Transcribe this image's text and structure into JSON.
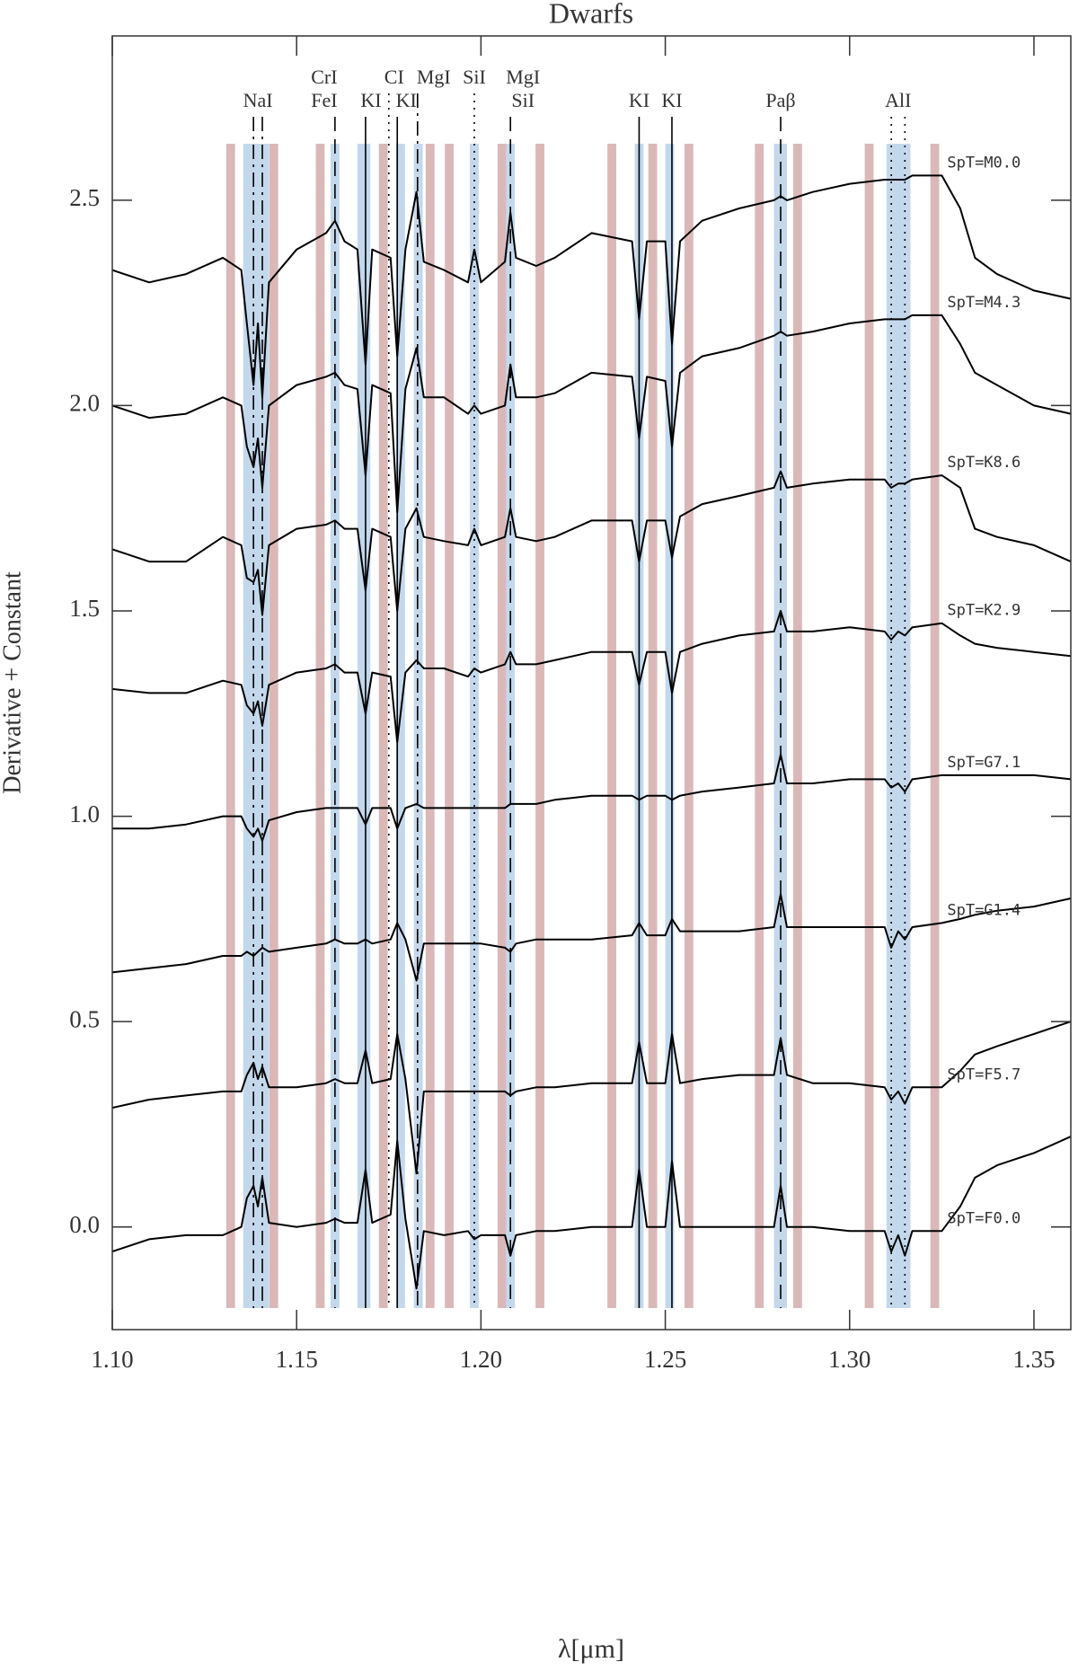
{
  "chart_data": {
    "type": "line",
    "title": "Dwarfs",
    "xlabel": "λ[μm]",
    "ylabel": "Derivative + Constant",
    "xlim": [
      1.1,
      1.36
    ],
    "ylim": [
      -0.25,
      2.9
    ],
    "xticks": [
      {
        "value": 1.1,
        "label": "1.10"
      },
      1.15,
      {
        "value": 1.2,
        "label": "1.20"
      },
      1.25,
      {
        "value": 1.3,
        "label": "1.30"
      },
      1.35
    ],
    "yticks": [
      {
        "value": 0,
        "label": "0.0"
      },
      0.5,
      {
        "value": 1,
        "label": "1.0"
      },
      1.5,
      {
        "value": 2,
        "label": "2.0"
      },
      2.5
    ],
    "x": [
      1.1,
      1.11,
      1.12,
      1.13,
      1.135,
      1.1365,
      1.1383,
      1.1395,
      1.1407,
      1.1425,
      1.15,
      1.158,
      1.1604,
      1.163,
      1.1665,
      1.1687,
      1.1705,
      1.1755,
      1.1773,
      1.1795,
      1.1825,
      1.1845,
      1.19,
      1.1965,
      1.1982,
      1.2,
      1.2065,
      1.208,
      1.2095,
      1.215,
      1.22,
      1.23,
      1.241,
      1.2429,
      1.245,
      1.25,
      1.2518,
      1.254,
      1.26,
      1.27,
      1.2795,
      1.2813,
      1.283,
      1.29,
      1.3,
      1.3095,
      1.3113,
      1.3132,
      1.315,
      1.317,
      1.325,
      1.33,
      1.334,
      1.34,
      1.35,
      1.36
    ],
    "series": [
      {
        "name": "SpT=M0.0",
        "color": "#000000",
        "values": [
          2.33,
          2.3,
          2.32,
          2.36,
          2.33,
          2.2,
          2.05,
          2.2,
          2.02,
          2.3,
          2.38,
          2.42,
          2.45,
          2.4,
          2.38,
          2.1,
          2.38,
          2.36,
          2.12,
          2.38,
          2.52,
          2.35,
          2.33,
          2.3,
          2.38,
          2.3,
          2.35,
          2.47,
          2.36,
          2.34,
          2.36,
          2.42,
          2.4,
          2.21,
          2.4,
          2.4,
          2.15,
          2.4,
          2.45,
          2.48,
          2.5,
          2.51,
          2.5,
          2.52,
          2.54,
          2.55,
          2.55,
          2.55,
          2.55,
          2.56,
          2.56,
          2.48,
          2.36,
          2.32,
          2.28,
          2.26
        ]
      },
      {
        "name": "SpT=M4.3",
        "color": "#000000",
        "values": [
          2.0,
          1.97,
          1.98,
          2.02,
          2.0,
          1.9,
          1.85,
          1.92,
          1.8,
          2.0,
          2.05,
          2.07,
          2.08,
          2.05,
          2.04,
          1.83,
          2.05,
          2.03,
          1.74,
          2.04,
          2.14,
          2.02,
          2.02,
          1.98,
          2.0,
          1.98,
          2.0,
          2.1,
          2.02,
          2.02,
          2.03,
          2.08,
          2.07,
          1.92,
          2.07,
          2.06,
          1.9,
          2.08,
          2.12,
          2.14,
          2.17,
          2.18,
          2.17,
          2.18,
          2.2,
          2.21,
          2.21,
          2.21,
          2.21,
          2.22,
          2.22,
          2.15,
          2.08,
          2.05,
          2.0,
          1.98
        ]
      },
      {
        "name": "SpT=K8.6",
        "color": "#000000",
        "values": [
          1.65,
          1.62,
          1.62,
          1.68,
          1.66,
          1.58,
          1.57,
          1.6,
          1.49,
          1.66,
          1.7,
          1.71,
          1.72,
          1.7,
          1.7,
          1.55,
          1.7,
          1.68,
          1.5,
          1.7,
          1.75,
          1.68,
          1.67,
          1.66,
          1.7,
          1.66,
          1.68,
          1.75,
          1.68,
          1.67,
          1.68,
          1.72,
          1.72,
          1.62,
          1.72,
          1.72,
          1.63,
          1.73,
          1.76,
          1.78,
          1.8,
          1.84,
          1.8,
          1.81,
          1.82,
          1.82,
          1.8,
          1.81,
          1.81,
          1.82,
          1.83,
          1.8,
          1.7,
          1.68,
          1.66,
          1.62
        ]
      },
      {
        "name": "SpT=K2.9",
        "color": "#000000",
        "values": [
          1.31,
          1.3,
          1.3,
          1.33,
          1.32,
          1.27,
          1.25,
          1.28,
          1.22,
          1.32,
          1.35,
          1.36,
          1.37,
          1.35,
          1.35,
          1.25,
          1.35,
          1.34,
          1.18,
          1.35,
          1.38,
          1.36,
          1.36,
          1.34,
          1.36,
          1.35,
          1.37,
          1.4,
          1.37,
          1.37,
          1.38,
          1.4,
          1.4,
          1.32,
          1.4,
          1.4,
          1.3,
          1.4,
          1.42,
          1.44,
          1.45,
          1.5,
          1.45,
          1.45,
          1.46,
          1.45,
          1.43,
          1.45,
          1.44,
          1.46,
          1.47,
          1.44,
          1.42,
          1.41,
          1.4,
          1.39
        ]
      },
      {
        "name": "SpT=G7.1",
        "color": "#000000",
        "values": [
          0.97,
          0.97,
          0.98,
          1.0,
          1.0,
          0.97,
          0.95,
          0.97,
          0.94,
          0.99,
          1.01,
          1.02,
          1.02,
          1.02,
          1.02,
          0.98,
          1.02,
          1.02,
          0.97,
          1.02,
          1.03,
          1.02,
          1.02,
          1.02,
          1.02,
          1.02,
          1.02,
          1.03,
          1.03,
          1.03,
          1.04,
          1.05,
          1.05,
          1.04,
          1.05,
          1.05,
          1.04,
          1.05,
          1.06,
          1.07,
          1.08,
          1.15,
          1.08,
          1.08,
          1.09,
          1.09,
          1.07,
          1.08,
          1.06,
          1.09,
          1.1,
          1.1,
          1.1,
          1.1,
          1.1,
          1.09
        ]
      },
      {
        "name": "SpT=G1.4",
        "color": "#000000",
        "values": [
          0.62,
          0.63,
          0.64,
          0.66,
          0.66,
          0.67,
          0.66,
          0.67,
          0.68,
          0.67,
          0.68,
          0.69,
          0.7,
          0.69,
          0.69,
          0.7,
          0.69,
          0.7,
          0.74,
          0.7,
          0.6,
          0.69,
          0.69,
          0.69,
          0.69,
          0.69,
          0.68,
          0.67,
          0.69,
          0.7,
          0.7,
          0.7,
          0.71,
          0.74,
          0.71,
          0.71,
          0.75,
          0.72,
          0.72,
          0.72,
          0.73,
          0.81,
          0.73,
          0.73,
          0.73,
          0.73,
          0.68,
          0.72,
          0.7,
          0.73,
          0.74,
          0.75,
          0.76,
          0.77,
          0.78,
          0.8
        ]
      },
      {
        "name": "SpT=F5.7",
        "color": "#000000",
        "values": [
          0.29,
          0.31,
          0.32,
          0.33,
          0.33,
          0.37,
          0.4,
          0.36,
          0.39,
          0.34,
          0.34,
          0.35,
          0.36,
          0.35,
          0.35,
          0.43,
          0.35,
          0.36,
          0.47,
          0.36,
          0.13,
          0.33,
          0.33,
          0.33,
          0.33,
          0.33,
          0.33,
          0.32,
          0.33,
          0.34,
          0.34,
          0.35,
          0.35,
          0.45,
          0.35,
          0.35,
          0.47,
          0.35,
          0.36,
          0.37,
          0.37,
          0.46,
          0.37,
          0.35,
          0.35,
          0.34,
          0.31,
          0.33,
          0.3,
          0.34,
          0.34,
          0.38,
          0.42,
          0.44,
          0.47,
          0.5
        ]
      },
      {
        "name": "SpT=F0.0",
        "color": "#000000",
        "values": [
          -0.06,
          -0.03,
          -0.02,
          -0.02,
          0.0,
          0.07,
          0.1,
          0.05,
          0.12,
          0.01,
          0.0,
          0.01,
          0.02,
          0.01,
          0.01,
          0.14,
          0.01,
          0.03,
          0.21,
          0.02,
          -0.15,
          -0.01,
          -0.02,
          -0.01,
          -0.03,
          -0.02,
          -0.02,
          -0.07,
          -0.02,
          -0.01,
          -0.01,
          0.0,
          0.0,
          0.14,
          0.0,
          0.0,
          0.16,
          0.0,
          0.0,
          0.0,
          0.0,
          0.1,
          0.0,
          0.0,
          -0.01,
          -0.01,
          -0.06,
          -0.02,
          -0.07,
          -0.01,
          -0.01,
          0.05,
          0.12,
          0.15,
          0.18,
          0.22
        ]
      }
    ],
    "bands": [
      {
        "color": "#dbb8b8",
        "ranges": [
          [
            1.1309,
            1.1333
          ],
          [
            1.1426,
            1.145
          ],
          [
            1.1552,
            1.1576
          ],
          [
            1.1723,
            1.1747
          ],
          [
            1.185,
            1.1874
          ],
          [
            1.1902,
            1.1926
          ],
          [
            1.2045,
            1.2069
          ],
          [
            1.2148,
            1.2172
          ],
          [
            1.2343,
            1.2367
          ],
          [
            1.2454,
            1.2478
          ],
          [
            1.2552,
            1.2576
          ],
          [
            1.2743,
            1.2767
          ],
          [
            1.2847,
            1.2871
          ],
          [
            1.3041,
            1.3065
          ],
          [
            1.3219,
            1.3243
          ]
        ]
      },
      {
        "color": "#c4d8ec",
        "ranges": [
          [
            1.1355,
            1.1425
          ],
          [
            1.1592,
            1.1616
          ],
          [
            1.1665,
            1.17
          ],
          [
            1.177,
            1.1794
          ],
          [
            1.1818,
            1.1842
          ],
          [
            1.197,
            1.1994
          ],
          [
            1.2068,
            1.2092
          ],
          [
            1.2417,
            1.2441
          ],
          [
            1.25,
            1.2524
          ],
          [
            1.2795,
            1.283
          ],
          [
            1.31,
            1.3165
          ]
        ]
      }
    ],
    "lines": [
      {
        "labels": [
          "NaI"
        ],
        "wavelengths": [
          1.1383,
          1.1407
        ],
        "style": "dashdot"
      },
      {
        "labels": [
          "CrI",
          "FeI"
        ],
        "wavelengths": [
          1.1604
        ],
        "style": "dashed"
      },
      {
        "labels": [
          "KI"
        ],
        "wavelengths": [
          1.1687
        ],
        "style": "solid"
      },
      {
        "labels": [
          "CI"
        ],
        "wavelengths": [
          1.175
        ],
        "style": "dotted"
      },
      {
        "labels": [
          "KI"
        ],
        "wavelengths": [
          1.1773
        ],
        "style": "solid"
      },
      {
        "labels": [
          "MgI"
        ],
        "wavelengths": [
          1.1828
        ],
        "style": "dashdot"
      },
      {
        "labels": [
          "SiI"
        ],
        "wavelengths": [
          1.1982
        ],
        "style": "dotted"
      },
      {
        "labels": [
          "MgI",
          "SiI"
        ],
        "wavelengths": [
          1.208
        ],
        "style": "dashed"
      },
      {
        "labels": [
          "KI"
        ],
        "wavelengths": [
          1.2429
        ],
        "style": "solid"
      },
      {
        "labels": [
          "KI"
        ],
        "wavelengths": [
          1.2518
        ],
        "style": "solid"
      },
      {
        "labels": [
          "Paβ"
        ],
        "wavelengths": [
          1.2813
        ],
        "style": "dashed"
      },
      {
        "labels": [
          "AlI"
        ],
        "wavelengths": [
          1.3113,
          1.315
        ],
        "style": "dotted"
      }
    ]
  }
}
